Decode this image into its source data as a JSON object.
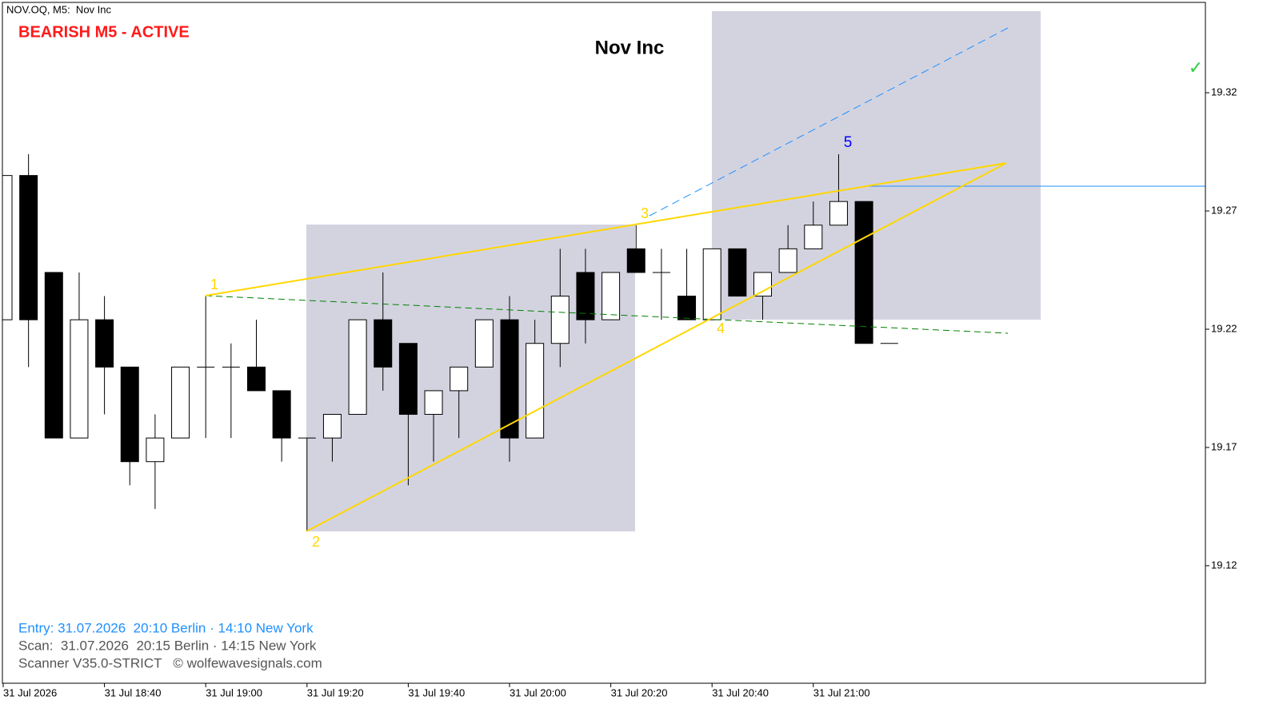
{
  "header": {
    "symbol": "NOV.OQ, M5:  Nov Inc",
    "status": "BEARISH M5 - ACTIVE",
    "check": "✓"
  },
  "chart_data": {
    "type": "candlestick",
    "title": "Nov Inc",
    "categories": [
      "31 Jul 2026",
      null,
      null,
      null,
      "31 Jul 18:40",
      null,
      null,
      null,
      "31 Jul 19:00",
      null,
      null,
      null,
      "31 Jul 19:20",
      null,
      null,
      null,
      "31 Jul 19:40",
      null,
      null,
      null,
      "31 Jul 20:00",
      null,
      null,
      null,
      "31 Jul 20:20",
      null,
      null,
      null,
      "31 Jul 20:40",
      null,
      null,
      null,
      "31 Jul 21:00",
      null,
      null,
      null
    ],
    "open": [
      19.224,
      19.285,
      19.244,
      19.174,
      19.224,
      19.204,
      19.164,
      19.174,
      19.204,
      19.204,
      19.204,
      19.194,
      19.174,
      19.174,
      19.184,
      19.224,
      19.214,
      19.184,
      19.194,
      19.204,
      19.224,
      19.174,
      19.214,
      19.244,
      19.224,
      19.254,
      19.244,
      19.234,
      19.224,
      19.254,
      19.234,
      19.244,
      19.254,
      19.264,
      19.274,
      19.214
    ],
    "high": [
      19.285,
      19.294,
      19.244,
      19.244,
      19.234,
      19.204,
      19.184,
      19.204,
      19.234,
      19.214,
      19.224,
      19.194,
      19.174,
      19.184,
      19.224,
      19.244,
      19.214,
      19.194,
      19.204,
      19.224,
      19.234,
      19.224,
      19.254,
      19.254,
      19.244,
      19.264,
      19.254,
      19.254,
      19.254,
      19.254,
      19.244,
      19.264,
      19.274,
      19.294,
      19.274,
      19.214
    ],
    "low": [
      19.224,
      19.204,
      19.174,
      19.174,
      19.184,
      19.154,
      19.144,
      19.174,
      19.174,
      19.174,
      19.194,
      19.164,
      19.135,
      19.164,
      19.184,
      19.194,
      19.154,
      19.164,
      19.174,
      19.204,
      19.164,
      19.174,
      19.204,
      19.214,
      19.224,
      19.244,
      19.224,
      19.224,
      19.224,
      19.234,
      19.224,
      19.244,
      19.254,
      19.264,
      19.214,
      19.214
    ],
    "close": [
      19.285,
      19.224,
      19.174,
      19.224,
      19.204,
      19.164,
      19.174,
      19.204,
      19.204,
      19.204,
      19.194,
      19.174,
      19.174,
      19.184,
      19.224,
      19.204,
      19.184,
      19.194,
      19.204,
      19.224,
      19.174,
      19.214,
      19.234,
      19.224,
      19.244,
      19.244,
      19.244,
      19.224,
      19.254,
      19.234,
      19.244,
      19.254,
      19.264,
      19.274,
      19.214,
      19.214
    ],
    "up_color": "#ffffff",
    "down_color": "#000000",
    "ylim": [
      19.0703,
      19.3582
    ],
    "yticks": [
      19.12,
      19.17,
      19.22,
      19.27,
      19.32
    ],
    "annotations": [
      "1",
      "2",
      "3",
      "4",
      "5"
    ]
  },
  "footer": {
    "entry": "Entry: 31.07.2026  20:10 Berlin · 14:10 New York",
    "scan": "Scan:  31.07.2026  20:15 Berlin · 14:15 New York",
    "scanner": "Scanner V35.0-STRICT   © wolfewavesignals.com"
  }
}
